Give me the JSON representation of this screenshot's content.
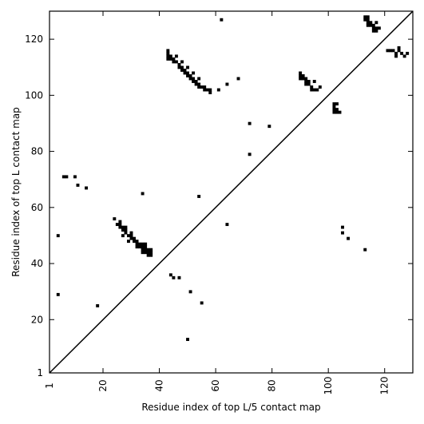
{
  "chart_data": {
    "type": "heatmap",
    "xlabel": "Residue index of top L/5 contact map",
    "ylabel": "Residue index of top L contact map",
    "xlim": [
      1,
      130
    ],
    "ylim": [
      1,
      130
    ],
    "x_ticks": [
      1,
      20,
      40,
      60,
      80,
      100,
      120
    ],
    "y_ticks": [
      1,
      20,
      40,
      60,
      80,
      100,
      120
    ],
    "diagonal_line": true,
    "grid": false,
    "legend": "none",
    "cell_color": "#000000",
    "contacts": [
      [
        43,
        116
      ],
      [
        43,
        115
      ],
      [
        43,
        114
      ],
      [
        43,
        113
      ],
      [
        44,
        114
      ],
      [
        44,
        113
      ],
      [
        45,
        113
      ],
      [
        45,
        112
      ],
      [
        46,
        112
      ],
      [
        46,
        114
      ],
      [
        47,
        111
      ],
      [
        47,
        110
      ],
      [
        48,
        110
      ],
      [
        48,
        109
      ],
      [
        48,
        112
      ],
      [
        49,
        109
      ],
      [
        49,
        108
      ],
      [
        50,
        108
      ],
      [
        50,
        107
      ],
      [
        50,
        110
      ],
      [
        51,
        107
      ],
      [
        51,
        106
      ],
      [
        52,
        106
      ],
      [
        52,
        105
      ],
      [
        52,
        108
      ],
      [
        53,
        105
      ],
      [
        53,
        104
      ],
      [
        54,
        104
      ],
      [
        54,
        103
      ],
      [
        54,
        106
      ],
      [
        55,
        103
      ],
      [
        56,
        103
      ],
      [
        56,
        102
      ],
      [
        57,
        102
      ],
      [
        58,
        101
      ],
      [
        58,
        102
      ],
      [
        61,
        102
      ],
      [
        62,
        127
      ],
      [
        64,
        104
      ],
      [
        68,
        106
      ],
      [
        72,
        90
      ],
      [
        79,
        89
      ],
      [
        72,
        79
      ],
      [
        90,
        108
      ],
      [
        90,
        107
      ],
      [
        90,
        106
      ],
      [
        91,
        107
      ],
      [
        91,
        106
      ],
      [
        92,
        106
      ],
      [
        92,
        105
      ],
      [
        92,
        104
      ],
      [
        93,
        105
      ],
      [
        93,
        104
      ],
      [
        94,
        103
      ],
      [
        94,
        102
      ],
      [
        95,
        102
      ],
      [
        95,
        105
      ],
      [
        96,
        102
      ],
      [
        97,
        103
      ],
      [
        102,
        97
      ],
      [
        102,
        96
      ],
      [
        102,
        95
      ],
      [
        102,
        94
      ],
      [
        103,
        95
      ],
      [
        103,
        94
      ],
      [
        103,
        97
      ],
      [
        104,
        94
      ],
      [
        105,
        53
      ],
      [
        105,
        51
      ],
      [
        107,
        49
      ],
      [
        113,
        45
      ],
      [
        113,
        128
      ],
      [
        113,
        127
      ],
      [
        114,
        128
      ],
      [
        114,
        127
      ],
      [
        114,
        126
      ],
      [
        114,
        125
      ],
      [
        115,
        126
      ],
      [
        115,
        125
      ],
      [
        116,
        125
      ],
      [
        116,
        124
      ],
      [
        116,
        123
      ],
      [
        117,
        124
      ],
      [
        117,
        123
      ],
      [
        117,
        126
      ],
      [
        118,
        124
      ],
      [
        121,
        116
      ],
      [
        122,
        116
      ],
      [
        123,
        116
      ],
      [
        124,
        115
      ],
      [
        124,
        114
      ],
      [
        125,
        116
      ],
      [
        125,
        117
      ],
      [
        126,
        115
      ],
      [
        127,
        114
      ],
      [
        128,
        115
      ],
      [
        24,
        56
      ],
      [
        25,
        54
      ],
      [
        26,
        54
      ],
      [
        26,
        53
      ],
      [
        26,
        55
      ],
      [
        27,
        53
      ],
      [
        27,
        52
      ],
      [
        27,
        50
      ],
      [
        28,
        53
      ],
      [
        28,
        52
      ],
      [
        28,
        51
      ],
      [
        29,
        50
      ],
      [
        29,
        48
      ],
      [
        30,
        51
      ],
      [
        30,
        50
      ],
      [
        30,
        49
      ],
      [
        31,
        49
      ],
      [
        31,
        48
      ],
      [
        32,
        48
      ],
      [
        32,
        47
      ],
      [
        32,
        46
      ],
      [
        33,
        47
      ],
      [
        33,
        46
      ],
      [
        34,
        47
      ],
      [
        34,
        46
      ],
      [
        34,
        45
      ],
      [
        34,
        44
      ],
      [
        34,
        65
      ],
      [
        35,
        47
      ],
      [
        35,
        46
      ],
      [
        35,
        45
      ],
      [
        35,
        44
      ],
      [
        36,
        45
      ],
      [
        36,
        44
      ],
      [
        36,
        43
      ],
      [
        37,
        45
      ],
      [
        37,
        44
      ],
      [
        37,
        43
      ],
      [
        4,
        50
      ],
      [
        4,
        29
      ],
      [
        6,
        71
      ],
      [
        7,
        71
      ],
      [
        10,
        71
      ],
      [
        11,
        68
      ],
      [
        14,
        67
      ],
      [
        18,
        25
      ],
      [
        44,
        36
      ],
      [
        45,
        35
      ],
      [
        47,
        35
      ],
      [
        50,
        13
      ],
      [
        51,
        30
      ],
      [
        54,
        64
      ],
      [
        55,
        26
      ],
      [
        64,
        54
      ]
    ]
  }
}
